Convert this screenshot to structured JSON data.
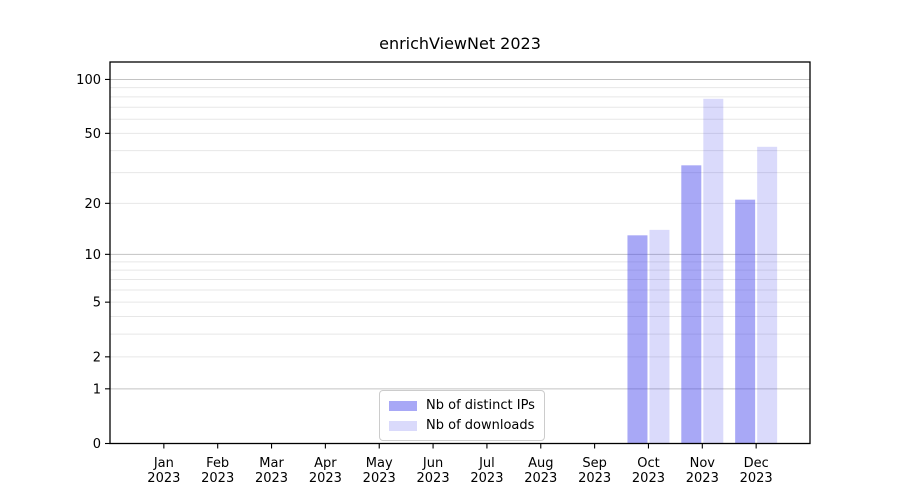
{
  "chart_data": {
    "type": "bar",
    "title": "enrichViewNet 2023",
    "categories": [
      "Jan",
      "Feb",
      "Mar",
      "Apr",
      "May",
      "Jun",
      "Jul",
      "Aug",
      "Sep",
      "Oct",
      "Nov",
      "Dec"
    ],
    "category_year": "2023",
    "series": [
      {
        "name": "Nb of distinct IPs",
        "color": "rgba(70,70,235,0.47)",
        "values": [
          0,
          0,
          0,
          0,
          0,
          0,
          0,
          0,
          0,
          13,
          33,
          21
        ]
      },
      {
        "name": "Nb of downloads",
        "color": "rgba(70,70,235,0.20)",
        "values": [
          0,
          0,
          0,
          0,
          0,
          0,
          0,
          0,
          0,
          14,
          78,
          42
        ]
      }
    ],
    "xlabel": "",
    "ylabel": "",
    "yscale": "log1p",
    "ylim": [
      0,
      125
    ],
    "y_ticks": [
      0,
      1,
      2,
      5,
      10,
      20,
      50,
      100
    ],
    "y_major_gridlines": [
      1,
      10,
      100
    ],
    "y_minor_gridlines": [
      2,
      3,
      4,
      5,
      6,
      7,
      8,
      9,
      20,
      30,
      40,
      50,
      60,
      70,
      80,
      90
    ],
    "grid": "horizontal",
    "legend_position": "lower center"
  },
  "colors": {
    "background": "#ffffff",
    "spine": "#000000",
    "text": "#000000",
    "major_grid": "#c3c3c3",
    "minor_grid": "#e7e7e7",
    "legend_border": "#cccccc",
    "legend_background": "rgba(255,255,255,0.9)"
  }
}
